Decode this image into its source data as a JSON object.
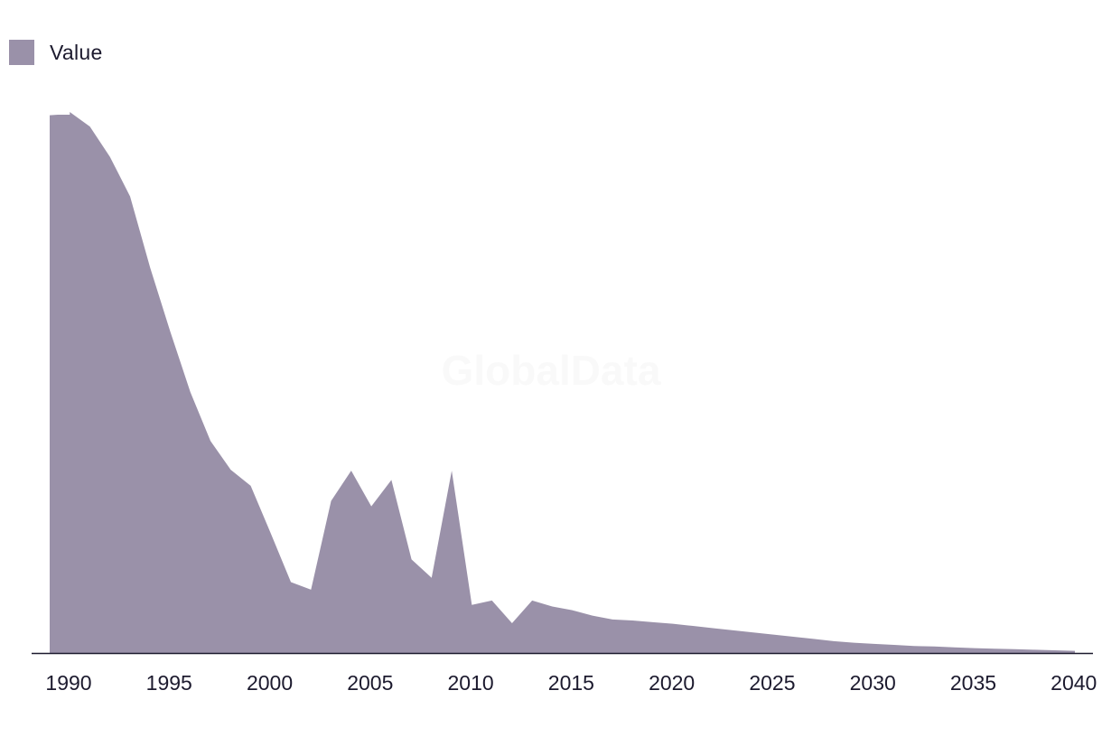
{
  "legend": {
    "label": "Value"
  },
  "watermark": "GlobalData",
  "colors": {
    "area": "#9a91a9",
    "axis": "#1c1a2e"
  },
  "chart_data": {
    "type": "area",
    "title": "",
    "xlabel": "",
    "ylabel": "",
    "legend_position": "top-left",
    "grid": false,
    "xlim": [
      1990,
      2041
    ],
    "ylim": [
      0,
      100
    ],
    "x_ticks": [
      "1990",
      "1995",
      "2000",
      "2005",
      "2010",
      "2015",
      "2020",
      "2025",
      "2030",
      "2035",
      "2040"
    ],
    "series": [
      {
        "name": "Value",
        "x": [
          1990,
          1990.4,
          1991,
          1991,
          1992,
          1993,
          1994,
          1995,
          1996,
          1997,
          1998,
          1999,
          2000,
          2001,
          2002,
          2003,
          2004,
          2005,
          2006,
          2007,
          2008,
          2009,
          2010,
          2011,
          2012,
          2013,
          2014,
          2015,
          2016,
          2017,
          2018,
          2019,
          2020,
          2021,
          2022,
          2023,
          2024,
          2025,
          2026,
          2027,
          2028,
          2029,
          2030,
          2031,
          2032,
          2033,
          2034,
          2035,
          2036,
          2037,
          2038,
          2039,
          2040,
          2041
        ],
        "values": [
          99.4,
          99.5,
          99.5,
          100,
          97.3,
          91.7,
          84.4,
          71.2,
          59.4,
          48.2,
          39.2,
          33.9,
          30.9,
          22.1,
          13.1,
          11.7,
          28.1,
          33.7,
          27.1,
          32.0,
          17.3,
          13.9,
          33.7,
          8.9,
          9.7,
          5.5,
          9.7,
          8.6,
          7.9,
          6.9,
          6.2,
          6.0,
          5.7,
          5.4,
          5.0,
          4.6,
          4.2,
          3.8,
          3.4,
          3.0,
          2.6,
          2.2,
          1.9,
          1.7,
          1.5,
          1.3,
          1.2,
          1.05,
          0.9,
          0.8,
          0.7,
          0.6,
          0.5,
          0.4
        ]
      }
    ]
  }
}
